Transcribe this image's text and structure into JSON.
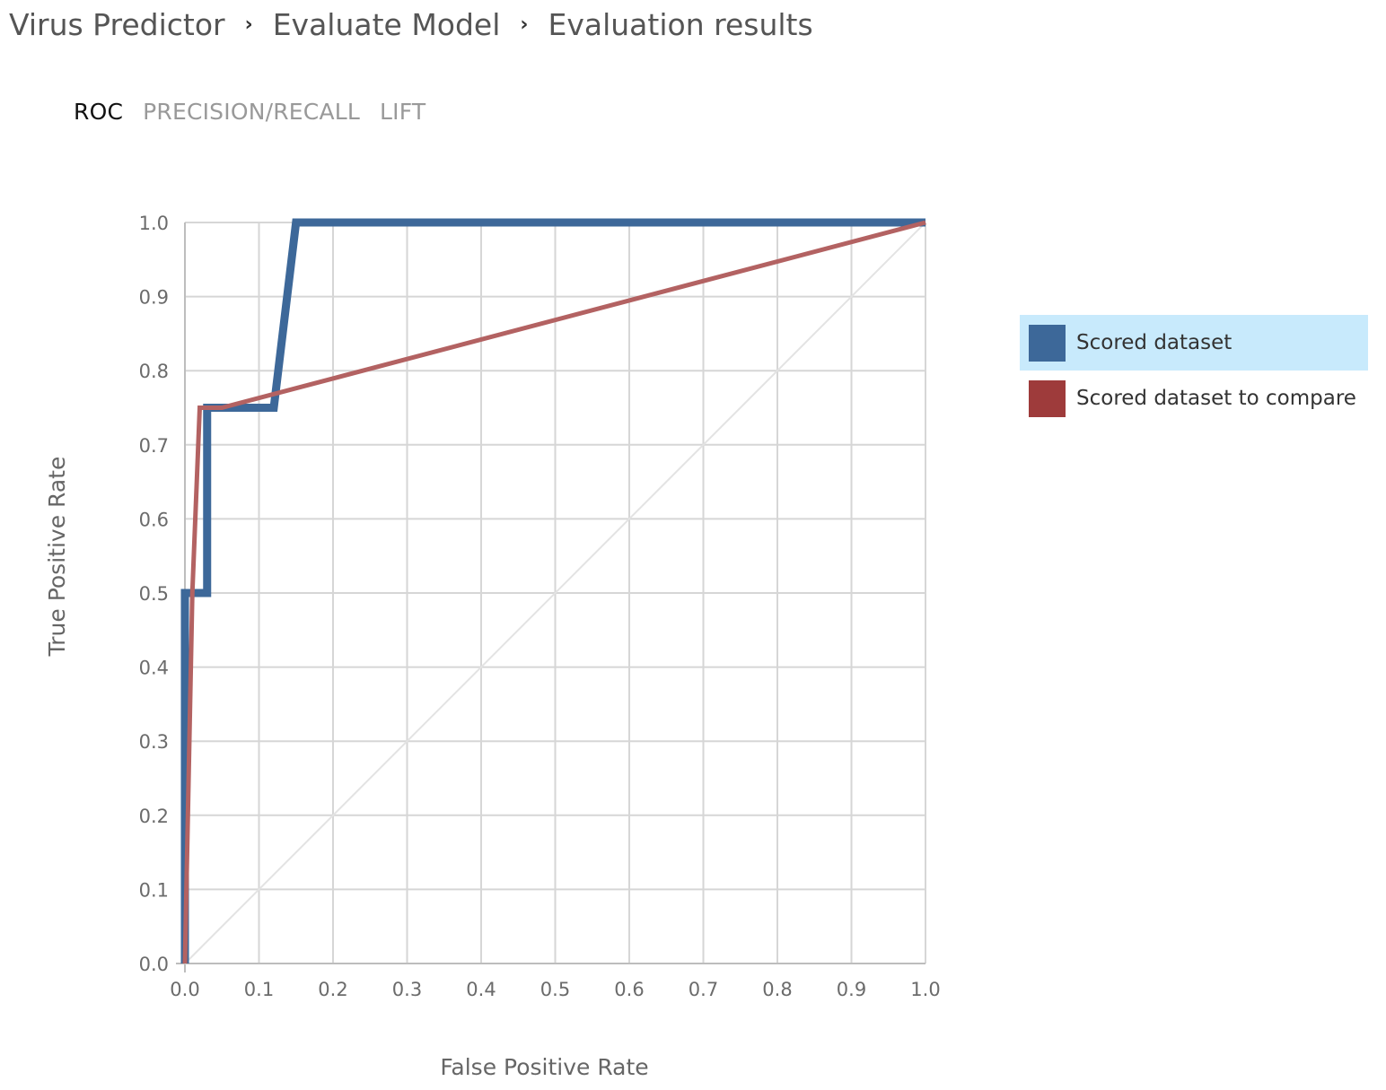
{
  "breadcrumb": {
    "items": [
      "Virus Predictor",
      "Evaluate Model",
      "Evaluation results"
    ],
    "separator": "›"
  },
  "tabs": [
    {
      "label": "ROC",
      "active": true
    },
    {
      "label": "PRECISION/RECALL",
      "active": false
    },
    {
      "label": "LIFT",
      "active": false
    }
  ],
  "legend": {
    "items": [
      {
        "label": "Scored dataset",
        "color": "#3d6899",
        "selected": true
      },
      {
        "label": "Scored dataset to compare",
        "color": "#9e3b3b",
        "selected": false
      }
    ]
  },
  "chart_data": {
    "type": "line",
    "xlabel": "False Positive Rate",
    "ylabel": "True Positive Rate",
    "xlim": [
      0,
      1
    ],
    "ylim": [
      0,
      1
    ],
    "xticks": [
      "0.0",
      "0.1",
      "0.2",
      "0.3",
      "0.4",
      "0.5",
      "0.6",
      "0.7",
      "0.8",
      "0.9",
      "1.0"
    ],
    "yticks": [
      "0.0",
      "0.1",
      "0.2",
      "0.3",
      "0.4",
      "0.5",
      "0.6",
      "0.7",
      "0.8",
      "0.9",
      "1.0"
    ],
    "grid": true,
    "legend_position": "right",
    "series": [
      {
        "name": "Scored dataset",
        "color": "#3d6899",
        "x": [
          0.0,
          0.0,
          0.03,
          0.03,
          0.12,
          0.15,
          1.0
        ],
        "y": [
          0.0,
          0.5,
          0.5,
          0.75,
          0.75,
          1.0,
          1.0
        ]
      },
      {
        "name": "Scored dataset to compare",
        "color": "#b36262",
        "x": [
          0.0,
          0.005,
          0.01,
          0.02,
          0.05,
          1.0
        ],
        "y": [
          0.0,
          0.25,
          0.5,
          0.75,
          0.75,
          1.0
        ]
      }
    ],
    "reference_line": {
      "x": [
        0,
        1
      ],
      "y": [
        0,
        1
      ],
      "color": "#e3e3e3"
    }
  }
}
